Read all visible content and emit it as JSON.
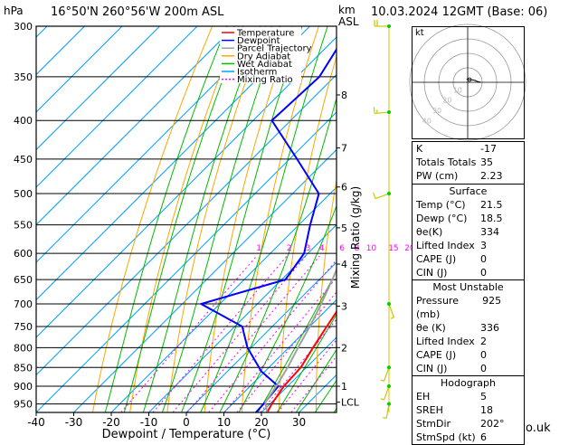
{
  "header": {
    "pressure_unit": "hPa",
    "location": "16°50'N  260°56'W  200m  ASL",
    "km_unit": "km",
    "asl_unit": "ASL",
    "datetime": "10.03.2024  12GMT  (Base: 06)"
  },
  "credit": "© weatheronline.co.uk",
  "hodograph": {
    "label": "kt",
    "ring_labels": [
      "10",
      "20",
      "30",
      "40"
    ]
  },
  "colors": {
    "temperature": "#ff0000",
    "dewpoint": "#0000ff",
    "parcel": "#a0a0a0",
    "dry_adiabat": "#ffa500",
    "wet_adiabat": "#00bb00",
    "isotherm": "#00a0ff",
    "mixing_ratio": "#ff00ff",
    "wind_barb": "#c8c800"
  },
  "chart_data": {
    "type": "line",
    "xlabel": "Dewpoint / Temperature (°C)",
    "ylabel": "hPa",
    "right_axis_label": "Mixing Ratio (g/kg)",
    "xlim": [
      -40,
      40
    ],
    "ylim": [
      975,
      300
    ],
    "x_ticks": [
      "-40",
      "-30",
      "-20",
      "-10",
      "0",
      "10",
      "20",
      "30"
    ],
    "pressure_levels": [
      300,
      350,
      400,
      450,
      500,
      550,
      600,
      650,
      700,
      750,
      800,
      850,
      900,
      950
    ],
    "km_ticks": [
      {
        "km": "8",
        "p": 370
      },
      {
        "km": "7",
        "p": 435
      },
      {
        "km": "6",
        "p": 490
      },
      {
        "km": "5",
        "p": 555
      },
      {
        "km": "4",
        "p": 620
      },
      {
        "km": "3",
        "p": 705
      },
      {
        "km": "2",
        "p": 800
      },
      {
        "km": "1",
        "p": 900
      },
      {
        "km": "LCL",
        "p": 945
      }
    ],
    "mixing_ratio_labels": [
      "1",
      "2",
      "3",
      "4",
      "6",
      "8",
      "10",
      "15",
      "20",
      "25"
    ],
    "legend": [
      "Temperature",
      "Dewpoint",
      "Parcel Trajectory",
      "Dry Adiabat",
      "Wet Adiabat",
      "Isotherm",
      "Mixing Ratio"
    ],
    "series": [
      {
        "name": "Temperature",
        "points": [
          [
            975,
            21.5
          ],
          [
            950,
            20.5
          ],
          [
            900,
            19
          ],
          [
            850,
            18.5
          ],
          [
            800,
            16.5
          ],
          [
            750,
            14.5
          ],
          [
            700,
            12.5
          ],
          [
            650,
            8.5
          ],
          [
            600,
            4.5
          ],
          [
            550,
            0
          ],
          [
            500,
            -5.5
          ],
          [
            450,
            -11
          ],
          [
            400,
            -17
          ],
          [
            350,
            -25
          ],
          [
            330,
            -30
          ]
        ]
      },
      {
        "name": "Dewpoint",
        "points": [
          [
            975,
            18.5
          ],
          [
            950,
            18.3
          ],
          [
            900,
            17.5
          ],
          [
            860,
            9
          ],
          [
            800,
            -1
          ],
          [
            750,
            -8
          ],
          [
            700,
            -25
          ],
          [
            650,
            -9
          ],
          [
            600,
            -11
          ],
          [
            550,
            -17
          ],
          [
            500,
            -23
          ],
          [
            450,
            -38
          ],
          [
            400,
            -55
          ],
          [
            350,
            -54
          ],
          [
            300,
            -59
          ]
        ]
      },
      {
        "name": "Parcel Trajectory",
        "points": [
          [
            975,
            21.5
          ],
          [
            945,
            18.3
          ],
          [
            900,
            17
          ],
          [
            850,
            15
          ],
          [
            800,
            12.5
          ],
          [
            750,
            10
          ],
          [
            700,
            7
          ],
          [
            650,
            3.5
          ],
          [
            600,
            -0.5
          ],
          [
            550,
            -5
          ],
          [
            500,
            -10.5
          ],
          [
            450,
            -17
          ],
          [
            400,
            -24.5
          ],
          [
            350,
            -34
          ],
          [
            300,
            -46
          ]
        ]
      }
    ]
  },
  "wind_barbs": [
    {
      "p": 300,
      "dir": 270,
      "spd": 20
    },
    {
      "p": 390,
      "dir": 265,
      "spd": 15
    },
    {
      "p": 500,
      "dir": 250,
      "spd": 10
    },
    {
      "p": 700,
      "dir": 160,
      "spd": 5
    },
    {
      "p": 850,
      "dir": 200,
      "spd": 5
    },
    {
      "p": 900,
      "dir": 200,
      "spd": 5
    },
    {
      "p": 950,
      "dir": 190,
      "spd": 5
    }
  ],
  "indices": [
    {
      "label": "K",
      "value": "-17"
    },
    {
      "label": "Totals Totals",
      "value": "35"
    },
    {
      "label": "PW (cm)",
      "value": "2.23"
    }
  ],
  "surface": {
    "title": "Surface",
    "rows": [
      {
        "label": "Temp (°C)",
        "value": "21.5"
      },
      {
        "label": "Dewp (°C)",
        "value": "18.5"
      },
      {
        "label": "θe(K)",
        "value": "334"
      },
      {
        "label": "Lifted Index",
        "value": "3"
      },
      {
        "label": "CAPE (J)",
        "value": "0"
      },
      {
        "label": "CIN (J)",
        "value": "0"
      }
    ]
  },
  "most_unstable": {
    "title": "Most Unstable",
    "rows": [
      {
        "label": "Pressure (mb)",
        "value": "925"
      },
      {
        "label": "θe (K)",
        "value": "336"
      },
      {
        "label": "Lifted Index",
        "value": "2"
      },
      {
        "label": "CAPE (J)",
        "value": "0"
      },
      {
        "label": "CIN (J)",
        "value": "0"
      }
    ]
  },
  "hodograph_table": {
    "title": "Hodograph",
    "rows": [
      {
        "label": "EH",
        "value": "5"
      },
      {
        "label": "SREH",
        "value": "18"
      },
      {
        "label": "StmDir",
        "value": "202°"
      },
      {
        "label": "StmSpd (kt)",
        "value": "6"
      }
    ]
  }
}
